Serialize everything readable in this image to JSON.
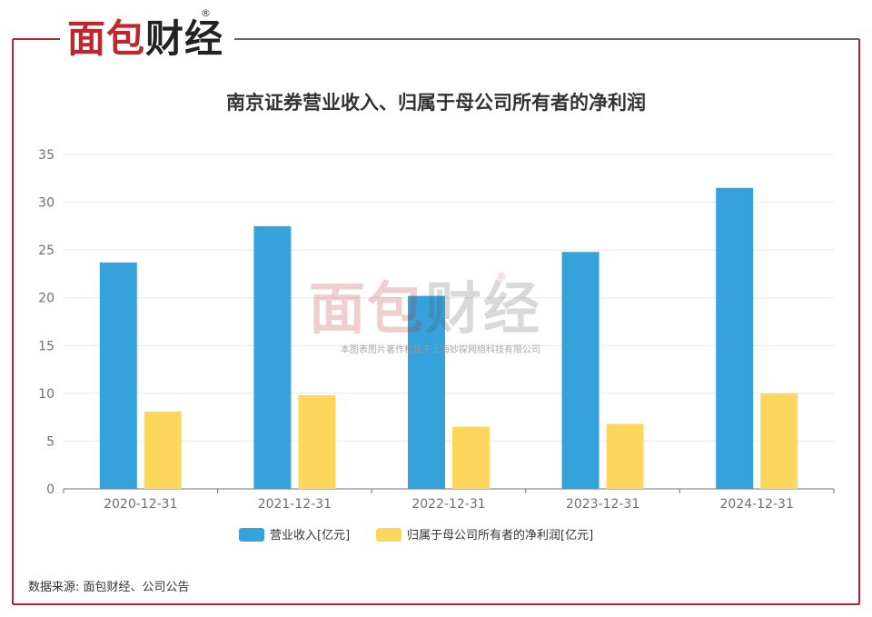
{
  "brand": {
    "logo_part1": "面包",
    "logo_part2": "财经",
    "registered": "®"
  },
  "title": "南京证券营业收入、归属于母公司所有者的净利润",
  "watermark": {
    "part1": "面包",
    "part2": "财经",
    "registered": "®",
    "sub": "本图表图片著作权属于上海妙探网络科技有限公司"
  },
  "source": "数据来源: 面包财经、公司公告",
  "colors": {
    "border": "#b3262c",
    "series1": "#36a2dc",
    "series2": "#fdd75b",
    "grid": "#e6e8ee",
    "axis": "#6e7079"
  },
  "chart_data": {
    "type": "bar",
    "categories": [
      "2020-12-31",
      "2021-12-31",
      "2022-12-31",
      "2023-12-31",
      "2024-12-31"
    ],
    "series": [
      {
        "name": "营业收入[亿元]",
        "values": [
          23.7,
          27.5,
          20.2,
          24.8,
          31.5
        ]
      },
      {
        "name": "归属于母公司所有者的净利润[亿元]",
        "values": [
          8.1,
          9.8,
          6.5,
          6.8,
          10.0
        ]
      }
    ],
    "ylim": [
      0,
      35
    ],
    "yticks": [
      0,
      5,
      10,
      15,
      20,
      25,
      30,
      35
    ],
    "grid": true,
    "legend": "bottom-center"
  }
}
